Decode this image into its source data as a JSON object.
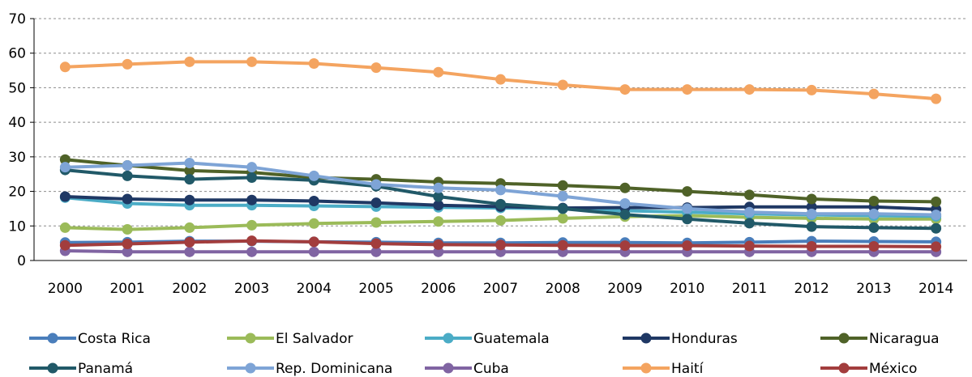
{
  "chart_data": {
    "type": "line",
    "title": "",
    "xlabel": "",
    "ylabel": "",
    "x": [
      "2000",
      "2001",
      "2002",
      "2003",
      "2004",
      "2005",
      "2006",
      "2007",
      "2008",
      "2009",
      "2010",
      "2011",
      "2012",
      "2013",
      "2014"
    ],
    "ylim": [
      0,
      70
    ],
    "yticks": [
      0,
      10,
      20,
      30,
      40,
      50,
      60,
      70
    ],
    "grid": true,
    "legend_position": "bottom",
    "series": [
      {
        "name": "Costa Rica",
        "color": "#4a7ebb",
        "values": [
          5.2,
          5.3,
          5.6,
          5.6,
          5.4,
          5.3,
          5.1,
          5.1,
          5.2,
          5.2,
          5.1,
          5.3,
          5.6,
          5.5,
          5.4
        ]
      },
      {
        "name": "El Salvador",
        "color": "#9bbb59",
        "values": [
          9.5,
          9.0,
          9.5,
          10.2,
          10.7,
          11.0,
          11.3,
          11.6,
          12.2,
          12.7,
          13.0,
          12.5,
          12.2,
          12.0,
          12.0
        ]
      },
      {
        "name": "Guatemala",
        "color": "#4bacc6",
        "values": [
          18.2,
          16.5,
          16.0,
          16.0,
          15.8,
          15.6,
          15.4,
          15.2,
          15.0,
          14.4,
          14.0,
          13.5,
          13.2,
          13.0,
          12.8
        ]
      },
      {
        "name": "Honduras",
        "color": "#1f3864",
        "values": [
          18.5,
          17.8,
          17.5,
          17.5,
          17.2,
          16.7,
          16.0,
          15.6,
          15.2,
          15.3,
          15.3,
          15.5,
          15.5,
          15.5,
          14.8
        ]
      },
      {
        "name": "Nicaragua",
        "color": "#4f6228",
        "values": [
          29.2,
          27.5,
          26.0,
          25.5,
          24.0,
          23.5,
          22.7,
          22.3,
          21.7,
          21.0,
          20.0,
          19.0,
          17.8,
          17.2,
          17.0
        ]
      },
      {
        "name": "Panamá",
        "color": "#215968",
        "values": [
          26.2,
          24.5,
          23.5,
          24.0,
          23.2,
          21.5,
          18.5,
          16.3,
          15.0,
          13.3,
          12.0,
          10.8,
          9.8,
          9.5,
          9.3
        ]
      },
      {
        "name": "Rep. Dominicana",
        "color": "#7ea4d6",
        "values": [
          27.0,
          27.5,
          28.2,
          27.0,
          24.5,
          22.0,
          21.0,
          20.4,
          18.6,
          16.5,
          15.0,
          14.0,
          13.5,
          13.5,
          13.2
        ]
      },
      {
        "name": "Cuba",
        "color": "#8064a2",
        "values": [
          2.8,
          2.5,
          2.5,
          2.5,
          2.5,
          2.5,
          2.5,
          2.5,
          2.5,
          2.5,
          2.5,
          2.5,
          2.5,
          2.5,
          2.5
        ]
      },
      {
        "name": "Haití",
        "color": "#f4a460",
        "values": [
          56.0,
          56.8,
          57.5,
          57.5,
          57.0,
          55.8,
          54.5,
          52.4,
          50.8,
          49.5,
          49.5,
          49.5,
          49.3,
          48.2,
          46.8
        ]
      },
      {
        "name": "México",
        "color": "#a23d3d",
        "values": [
          4.4,
          4.8,
          5.3,
          5.7,
          5.4,
          4.9,
          4.6,
          4.5,
          4.4,
          4.3,
          4.3,
          4.2,
          4.1,
          4.1,
          4.0
        ]
      }
    ]
  }
}
